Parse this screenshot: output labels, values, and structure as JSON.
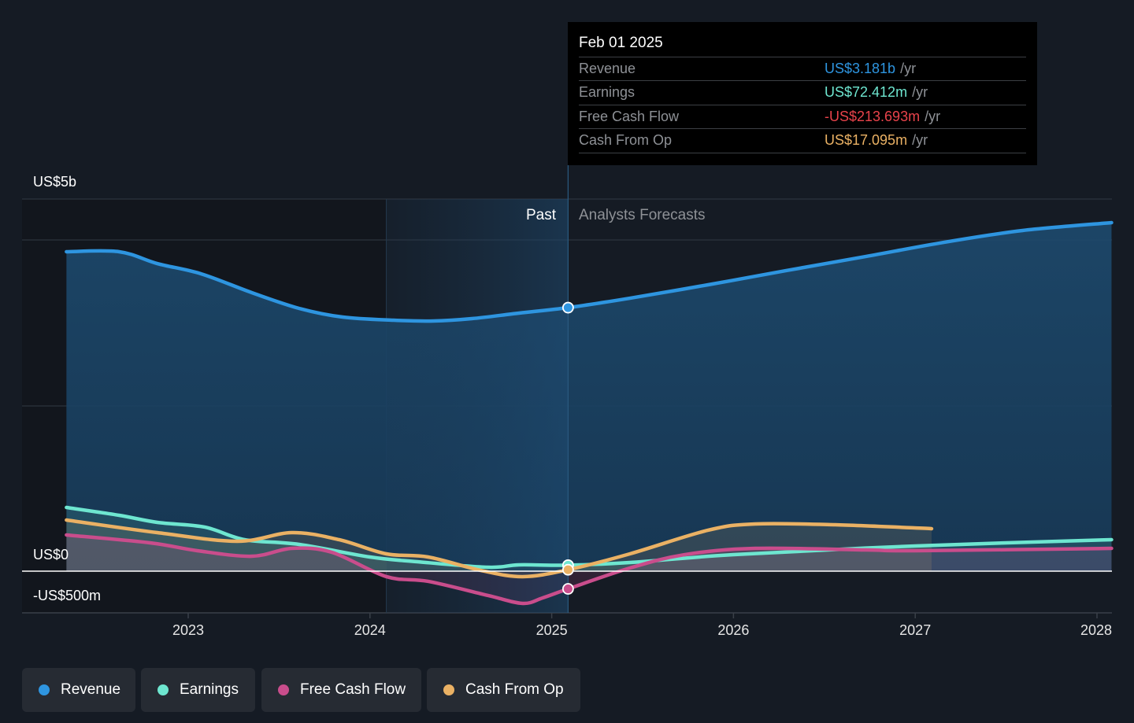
{
  "tooltip": {
    "date": "Feb 01 2025",
    "rows": [
      {
        "label": "Revenue",
        "value": "US$3.181b",
        "unit": "/yr",
        "color": "#2e95e0"
      },
      {
        "label": "Earnings",
        "value": "US$72.412m",
        "unit": "/yr",
        "color": "#6ee6d0"
      },
      {
        "label": "Free Cash Flow",
        "value": "-US$213.693m",
        "unit": "/yr",
        "color": "#e8434b"
      },
      {
        "label": "Cash From Op",
        "value": "US$17.095m",
        "unit": "/yr",
        "color": "#eab164"
      }
    ]
  },
  "regions": {
    "past": "Past",
    "forecast": "Analysts Forecasts"
  },
  "legend": [
    {
      "label": "Revenue",
      "color": "#2e95e0"
    },
    {
      "label": "Earnings",
      "color": "#6ee6d0"
    },
    {
      "label": "Free Cash Flow",
      "color": "#c94d8c"
    },
    {
      "label": "Cash From Op",
      "color": "#eab164"
    }
  ],
  "chart_data": {
    "type": "line",
    "title": "",
    "xlabel": "",
    "ylabel": "",
    "y_unit": "US$ millions",
    "y_tick_labels": [
      {
        "value": 5000,
        "label": "US$5b"
      },
      {
        "value": 0,
        "label": "US$0"
      },
      {
        "value": -500,
        "label": "-US$500m"
      }
    ],
    "x_ticks": [
      2023,
      2024,
      2025,
      2026,
      2027,
      2028
    ],
    "xlim": [
      2022.33,
      2028.08
    ],
    "ylim": [
      -500,
      4500
    ],
    "grid": true,
    "past_region_start": 2024.09,
    "forecast_start": 2025.09,
    "legend_position": "bottom-left",
    "series": [
      {
        "name": "Revenue",
        "color": "#2e95e0",
        "x": [
          2022.33,
          2022.62,
          2022.83,
          2023.07,
          2023.35,
          2023.61,
          2023.85,
          2024.13,
          2024.35,
          2024.56,
          2024.82,
          2025.09,
          2025.43,
          2025.86,
          2026.29,
          2026.73,
          2027.16,
          2027.59,
          2028.08
        ],
        "values": [
          3856,
          3856,
          3713,
          3590,
          3362,
          3172,
          3067,
          3029,
          3020,
          3048,
          3115,
          3181,
          3295,
          3457,
          3628,
          3799,
          3970,
          4112,
          4207
        ]
      },
      {
        "name": "Earnings",
        "color": "#6ee6d0",
        "x": [
          2022.33,
          2022.62,
          2022.83,
          2023.09,
          2023.31,
          2023.61,
          2024.0,
          2024.26,
          2024.65,
          2024.82,
          2025.09,
          2025.43,
          2026.0,
          2027.0,
          2028.08
        ],
        "values": [
          769,
          674,
          589,
          532,
          380,
          323,
          171,
          114,
          47,
          76,
          72,
          104,
          199,
          304,
          380
        ]
      },
      {
        "name": "Free Cash Flow",
        "color": "#c94d8c",
        "x": [
          2022.33,
          2022.79,
          2023.05,
          2023.35,
          2023.57,
          2023.79,
          2024.09,
          2024.32,
          2024.65,
          2024.84,
          2024.95,
          2025.09,
          2025.43,
          2025.73,
          2026.12,
          2026.73,
          2027.0,
          2028.08
        ],
        "values": [
          437,
          342,
          247,
          180,
          275,
          228,
          -66,
          -123,
          -294,
          -389,
          -323,
          -214,
          38,
          199,
          275,
          256,
          247,
          275
        ]
      },
      {
        "name": "Cash From Op",
        "color": "#eab164",
        "x": [
          2022.33,
          2022.83,
          2023.27,
          2023.57,
          2023.83,
          2024.09,
          2024.32,
          2024.61,
          2024.84,
          2025.09,
          2025.43,
          2025.86,
          2026.12,
          2026.56,
          2027.09
        ],
        "values": [
          617,
          465,
          361,
          465,
          380,
          209,
          171,
          9,
          -66,
          17,
          209,
          494,
          570,
          560,
          513
        ]
      }
    ]
  }
}
